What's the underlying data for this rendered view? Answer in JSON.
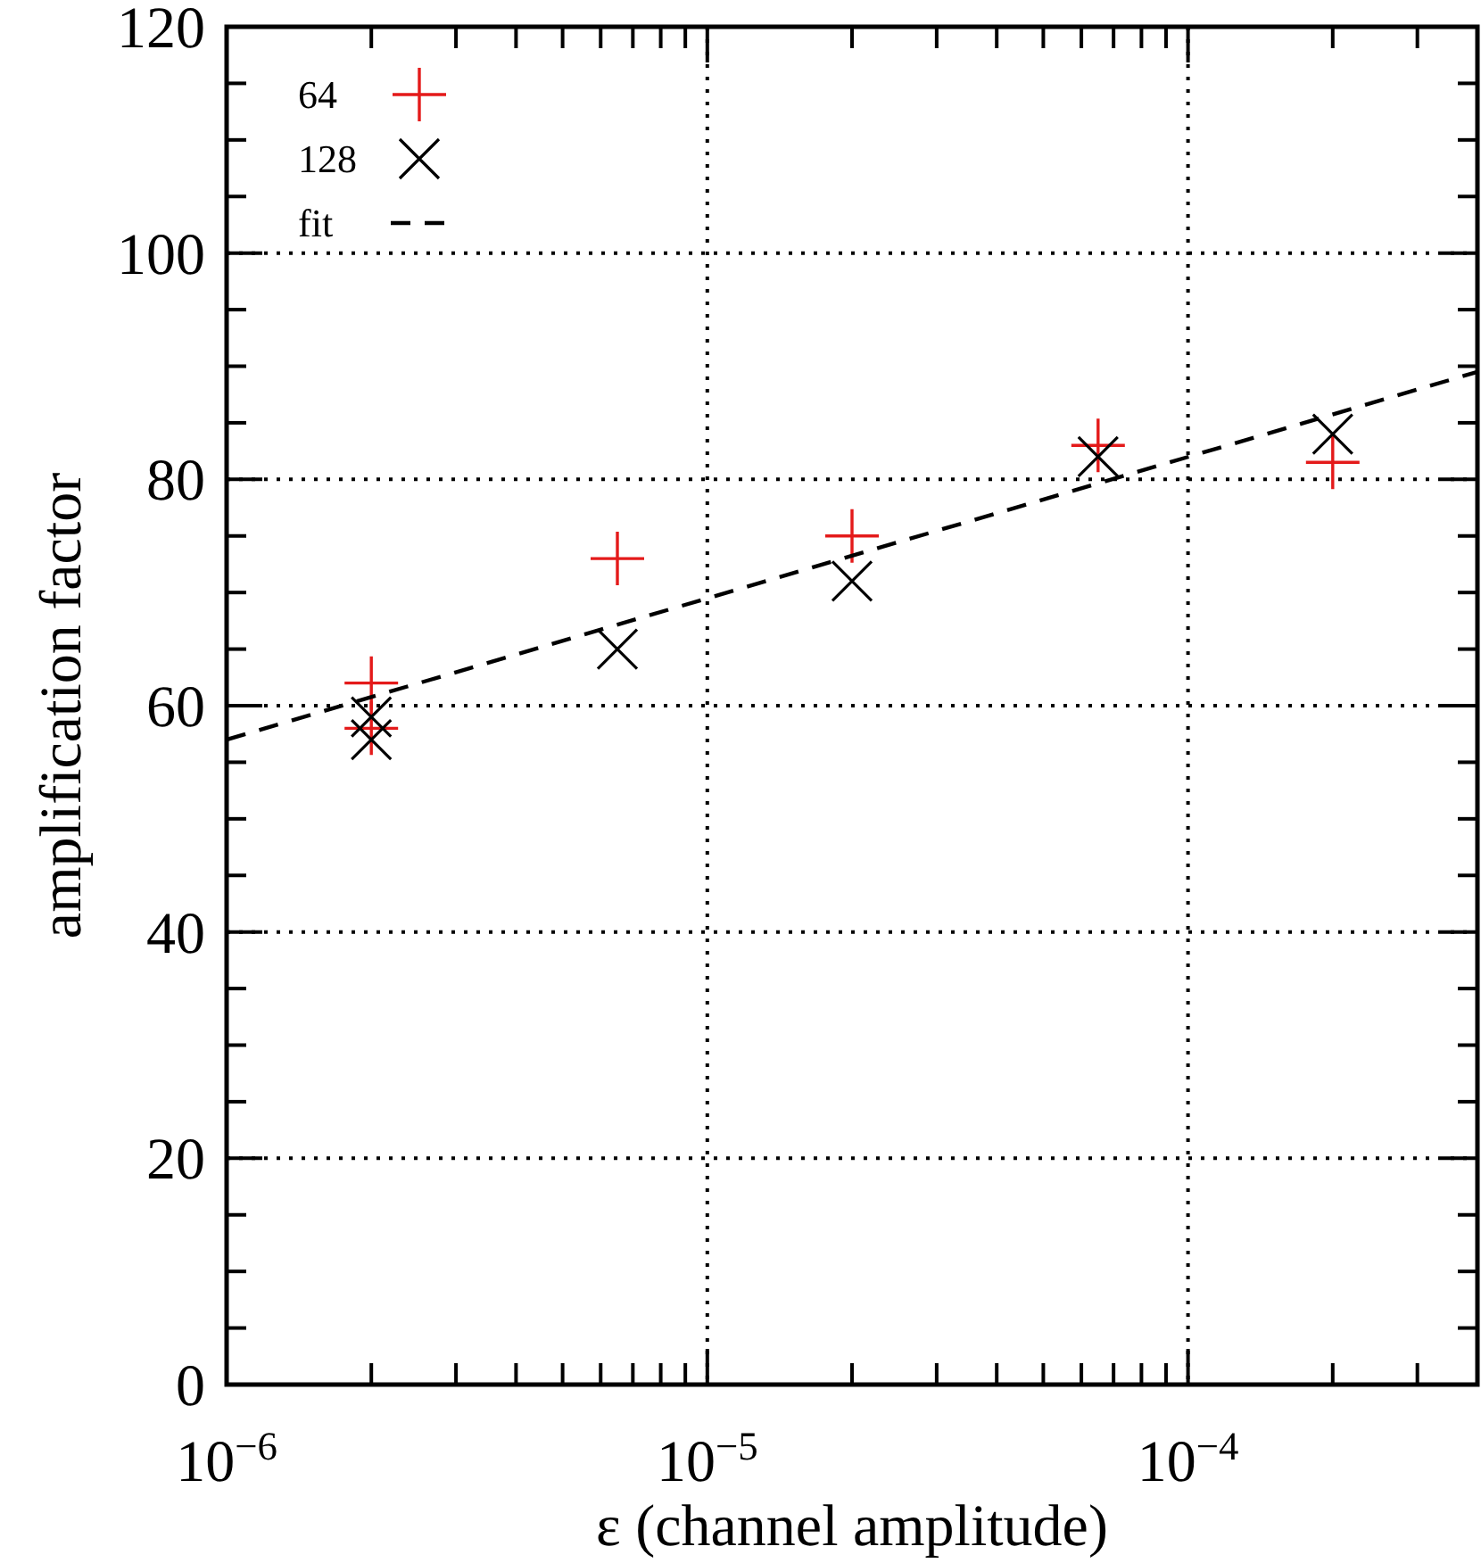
{
  "chart_data": {
    "type": "scatter",
    "xlabel": "ε (channel amplitude)",
    "ylabel": "amplification factor",
    "log": "x",
    "grid": true,
    "legend": "top left",
    "xlim": [
      1e-06,
      0.0004
    ],
    "ylim": [
      0,
      120
    ],
    "xticks": [
      {
        "value": 1e-06,
        "label": "10$^{−6}$"
      },
      {
        "value": 2e-06,
        "label": null
      },
      {
        "value": 3e-06,
        "label": null
      },
      {
        "value": 4e-06,
        "label": null
      },
      {
        "value": 5e-06,
        "label": null
      },
      {
        "value": 6e-06,
        "label": null
      },
      {
        "value": 7e-06,
        "label": null
      },
      {
        "value": 8e-06,
        "label": null
      },
      {
        "value": 9e-06,
        "label": null
      },
      {
        "value": 1e-05,
        "label": "10$^{−5}$"
      },
      {
        "value": 2e-05,
        "label": null
      },
      {
        "value": 3e-05,
        "label": null
      },
      {
        "value": 4e-05,
        "label": null
      },
      {
        "value": 5e-05,
        "label": null
      },
      {
        "value": 6e-05,
        "label": null
      },
      {
        "value": 7e-05,
        "label": null
      },
      {
        "value": 8e-05,
        "label": null
      },
      {
        "value": 9e-05,
        "label": null
      },
      {
        "value": 0.0001,
        "label": "10$^{−4}$"
      },
      {
        "value": 0.0002,
        "label": null
      },
      {
        "value": 0.0003,
        "label": null
      }
    ],
    "yticks": [
      0,
      {
        "value": 5,
        "label": null
      },
      {
        "value": 10,
        "label": null
      },
      {
        "value": 15,
        "label": null
      },
      20,
      {
        "value": 25,
        "label": null
      },
      {
        "value": 30,
        "label": null
      },
      {
        "value": 35,
        "label": null
      },
      40,
      {
        "value": 45,
        "label": null
      },
      {
        "value": 50,
        "label": null
      },
      {
        "value": 55,
        "label": null
      },
      60,
      {
        "value": 65,
        "label": null
      },
      {
        "value": 70,
        "label": null
      },
      {
        "value": 75,
        "label": null
      },
      80,
      {
        "value": 85,
        "label": null
      },
      {
        "value": 90,
        "label": null
      },
      {
        "value": 95,
        "label": null
      },
      100,
      {
        "value": 105,
        "label": null
      },
      {
        "value": 110,
        "label": null
      },
      {
        "value": 115,
        "label": null
      },
      120
    ],
    "series": [
      {
        "name": "64",
        "marker": "cross",
        "color": "#e41a1a",
        "x": [
          2e-06,
          2e-06,
          6.5e-06,
          2e-05,
          6.5e-05,
          0.0002
        ],
        "values": [
          62,
          58,
          73,
          75,
          83,
          81.5
        ]
      },
      {
        "name": "128",
        "marker": "x",
        "color": "#000000",
        "x": [
          2e-06,
          2e-06,
          6.5e-06,
          2e-05,
          6.5e-05,
          0.0002
        ],
        "values": [
          59,
          57,
          65,
          71,
          82,
          84
        ]
      },
      {
        "name": "fit",
        "type": "line",
        "marker": "none",
        "line_style": "dashed",
        "color": "#000000",
        "x": [
          1e-06,
          0.0004
        ],
        "values": [
          57,
          89.5
        ]
      }
    ]
  }
}
